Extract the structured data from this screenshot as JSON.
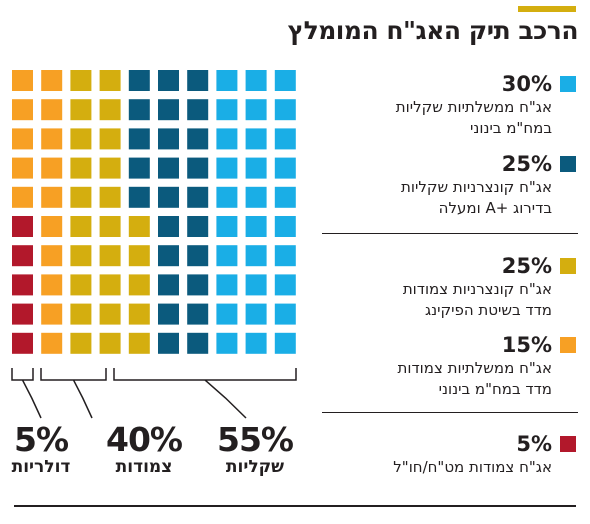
{
  "title": "הרכב תיק האג\"ח המומלץ",
  "colors": {
    "accent": "#d4ae0f",
    "gov_fixed": "#1aaee6",
    "corp_fixed": "#0b5a7d",
    "corp_cpi": "#d4ae0f",
    "gov_cpi": "#f7a024",
    "foreign": "#b2182b"
  },
  "legend": [
    {
      "pct": "30%",
      "line1": "אג\"ח ממשלתיות שקליות",
      "line2": "במח\"מ בינוני",
      "color": "#1aaee6"
    },
    {
      "pct": "25%",
      "line1": "אג\"ח קונצרניות שקליות",
      "line2": "בדירוג +A ומעלה",
      "color": "#0b5a7d"
    },
    {
      "pct": "25%",
      "line1": "אג\"ח קונצרניות צמודות",
      "line2": "מדד בשיטת הפיקינג",
      "color": "#d4ae0f"
    },
    {
      "pct": "15%",
      "line1": "אג\"ח ממשלתיות צמודות",
      "line2": "מדד במח\"מ בינוני",
      "color": "#f7a024"
    },
    {
      "pct": "5%",
      "line1": "אג\"ח צמודות מט\"ח/חו\"ל",
      "line2": "",
      "color": "#b2182b"
    }
  ],
  "totals": [
    {
      "value": "5%",
      "label": "דולריות"
    },
    {
      "value": "40%",
      "label": "צמודות"
    },
    {
      "value": "55%",
      "label": "שקליות"
    }
  ],
  "chart_data": {
    "type": "waffle",
    "title": "הרכב תיק האג\"ח המומלץ",
    "grid": {
      "columns": 10,
      "rows": 10
    },
    "series": [
      {
        "name": "אג\"ח ממשלתיות שקליות במח\"מ בינוני",
        "value": 30,
        "color": "#1aaee6"
      },
      {
        "name": "אג\"ח קונצרניות שקליות בדירוג +A ומעלה",
        "value": 25,
        "color": "#0b5a7d"
      },
      {
        "name": "אג\"ח קונצרניות צמודות מדד בשיטת הפיקינג",
        "value": 25,
        "color": "#d4ae0f"
      },
      {
        "name": "אג\"ח ממשלתיות צמודות מדד במח\"מ בינוני",
        "value": 15,
        "color": "#f7a024"
      },
      {
        "name": "אג\"ח צמודות מט\"ח/חו\"ל",
        "value": 5,
        "color": "#b2182b"
      }
    ],
    "groups": [
      {
        "name": "שקליות",
        "value": 55
      },
      {
        "name": "צמודות",
        "value": 40
      },
      {
        "name": "דולריות",
        "value": 5
      }
    ]
  }
}
